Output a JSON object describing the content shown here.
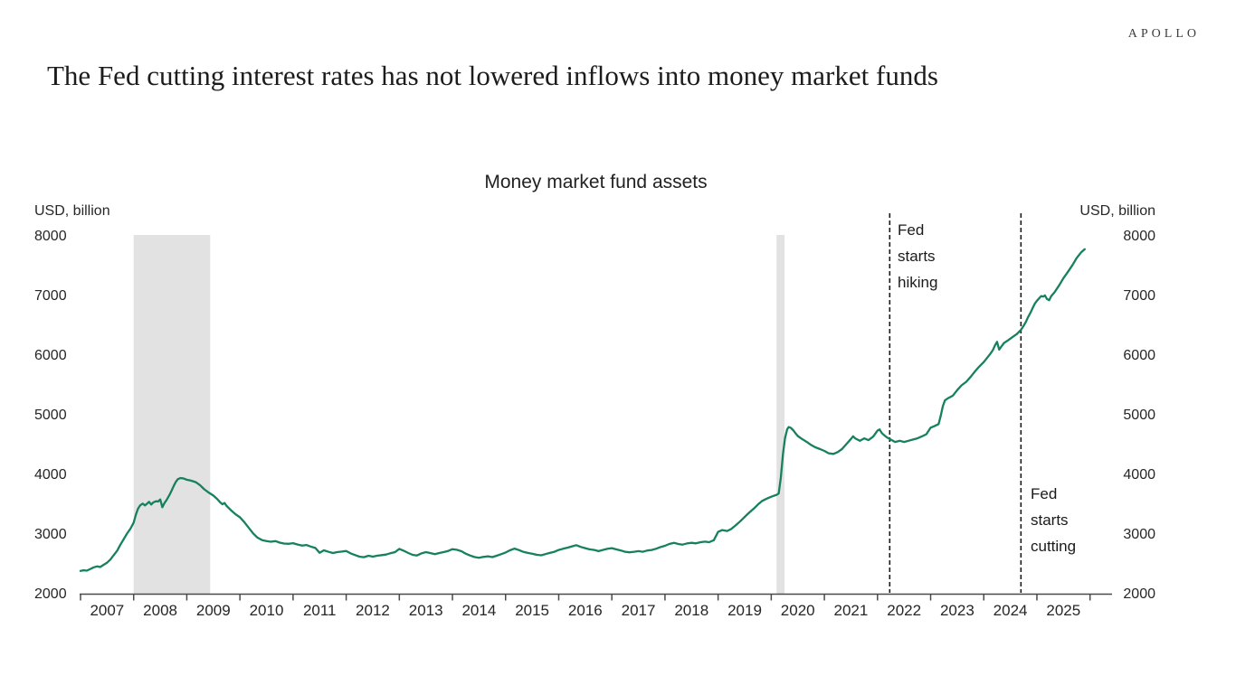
{
  "brand": {
    "logo_text": "APOLLO"
  },
  "page_title": "The Fed cutting interest rates has not lowered inflows into money market funds",
  "chart_data": {
    "type": "line",
    "title": "Money market fund assets",
    "left_axis_label": "USD, billion",
    "right_axis_label": "USD, billion",
    "ylim": [
      2000,
      8000
    ],
    "y_ticks": [
      2000,
      3000,
      4000,
      5000,
      6000,
      7000,
      8000
    ],
    "x_tick_labels": [
      "2007",
      "2008",
      "2009",
      "2010",
      "2011",
      "2012",
      "2013",
      "2014",
      "2015",
      "2016",
      "2017",
      "2018",
      "2019",
      "2020",
      "2021",
      "2022",
      "2023",
      "2024",
      "2025"
    ],
    "grid": false,
    "legend": "none",
    "line_color": "#17805F",
    "recession_band_color": "#E2E2E2",
    "recession_bands": [
      {
        "start": 2008.0,
        "end": 2009.44,
        "name": "2008-2009 recession shading"
      },
      {
        "start": 2020.1,
        "end": 2020.25,
        "name": "2020 recession shading"
      }
    ],
    "events": [
      {
        "year": 2022.23,
        "label": "Fed\nstarts\nhiking"
      },
      {
        "year": 2024.7,
        "label": "Fed\nstarts\ncutting"
      }
    ],
    "series_name": "Money market fund assets (USD, billion)",
    "series": [
      [
        2007.0,
        2390
      ],
      [
        2007.06,
        2400
      ],
      [
        2007.12,
        2395
      ],
      [
        2007.19,
        2425
      ],
      [
        2007.25,
        2450
      ],
      [
        2007.31,
        2465
      ],
      [
        2007.37,
        2455
      ],
      [
        2007.44,
        2495
      ],
      [
        2007.5,
        2530
      ],
      [
        2007.56,
        2580
      ],
      [
        2007.62,
        2650
      ],
      [
        2007.69,
        2730
      ],
      [
        2007.75,
        2830
      ],
      [
        2007.81,
        2920
      ],
      [
        2007.87,
        3010
      ],
      [
        2007.94,
        3100
      ],
      [
        2008.0,
        3200
      ],
      [
        2008.04,
        3330
      ],
      [
        2008.08,
        3430
      ],
      [
        2008.12,
        3490
      ],
      [
        2008.17,
        3520
      ],
      [
        2008.21,
        3490
      ],
      [
        2008.25,
        3515
      ],
      [
        2008.29,
        3550
      ],
      [
        2008.33,
        3505
      ],
      [
        2008.37,
        3540
      ],
      [
        2008.42,
        3560
      ],
      [
        2008.46,
        3555
      ],
      [
        2008.5,
        3590
      ],
      [
        2008.54,
        3460
      ],
      [
        2008.58,
        3530
      ],
      [
        2008.62,
        3580
      ],
      [
        2008.67,
        3660
      ],
      [
        2008.71,
        3730
      ],
      [
        2008.75,
        3810
      ],
      [
        2008.79,
        3880
      ],
      [
        2008.83,
        3930
      ],
      [
        2008.88,
        3950
      ],
      [
        2008.92,
        3945
      ],
      [
        2008.96,
        3935
      ],
      [
        2009.0,
        3920
      ],
      [
        2009.08,
        3905
      ],
      [
        2009.17,
        3880
      ],
      [
        2009.25,
        3830
      ],
      [
        2009.33,
        3760
      ],
      [
        2009.42,
        3700
      ],
      [
        2009.5,
        3655
      ],
      [
        2009.58,
        3590
      ],
      [
        2009.63,
        3540
      ],
      [
        2009.67,
        3510
      ],
      [
        2009.71,
        3530
      ],
      [
        2009.75,
        3480
      ],
      [
        2009.83,
        3410
      ],
      [
        2009.92,
        3340
      ],
      [
        2010.0,
        3290
      ],
      [
        2010.08,
        3210
      ],
      [
        2010.17,
        3110
      ],
      [
        2010.25,
        3020
      ],
      [
        2010.33,
        2950
      ],
      [
        2010.42,
        2905
      ],
      [
        2010.5,
        2890
      ],
      [
        2010.58,
        2880
      ],
      [
        2010.67,
        2890
      ],
      [
        2010.75,
        2865
      ],
      [
        2010.83,
        2850
      ],
      [
        2010.92,
        2845
      ],
      [
        2011.0,
        2855
      ],
      [
        2011.08,
        2835
      ],
      [
        2011.17,
        2815
      ],
      [
        2011.25,
        2825
      ],
      [
        2011.33,
        2800
      ],
      [
        2011.42,
        2775
      ],
      [
        2011.5,
        2695
      ],
      [
        2011.58,
        2735
      ],
      [
        2011.67,
        2710
      ],
      [
        2011.75,
        2690
      ],
      [
        2011.83,
        2705
      ],
      [
        2011.92,
        2715
      ],
      [
        2012.0,
        2725
      ],
      [
        2012.08,
        2685
      ],
      [
        2012.17,
        2655
      ],
      [
        2012.25,
        2630
      ],
      [
        2012.33,
        2620
      ],
      [
        2012.42,
        2645
      ],
      [
        2012.5,
        2630
      ],
      [
        2012.58,
        2645
      ],
      [
        2012.67,
        2655
      ],
      [
        2012.75,
        2665
      ],
      [
        2012.83,
        2685
      ],
      [
        2012.92,
        2705
      ],
      [
        2013.0,
        2760
      ],
      [
        2013.08,
        2730
      ],
      [
        2013.17,
        2690
      ],
      [
        2013.25,
        2660
      ],
      [
        2013.33,
        2650
      ],
      [
        2013.42,
        2685
      ],
      [
        2013.5,
        2705
      ],
      [
        2013.58,
        2690
      ],
      [
        2013.67,
        2672
      ],
      [
        2013.75,
        2690
      ],
      [
        2013.83,
        2705
      ],
      [
        2013.92,
        2725
      ],
      [
        2014.0,
        2755
      ],
      [
        2014.08,
        2745
      ],
      [
        2014.17,
        2720
      ],
      [
        2014.25,
        2680
      ],
      [
        2014.33,
        2650
      ],
      [
        2014.42,
        2622
      ],
      [
        2014.5,
        2612
      ],
      [
        2014.58,
        2625
      ],
      [
        2014.67,
        2635
      ],
      [
        2014.75,
        2622
      ],
      [
        2014.83,
        2645
      ],
      [
        2014.92,
        2672
      ],
      [
        2015.0,
        2700
      ],
      [
        2015.08,
        2735
      ],
      [
        2015.17,
        2765
      ],
      [
        2015.25,
        2740
      ],
      [
        2015.33,
        2712
      ],
      [
        2015.42,
        2692
      ],
      [
        2015.5,
        2680
      ],
      [
        2015.58,
        2662
      ],
      [
        2015.67,
        2652
      ],
      [
        2015.75,
        2672
      ],
      [
        2015.83,
        2692
      ],
      [
        2015.92,
        2712
      ],
      [
        2016.0,
        2742
      ],
      [
        2016.08,
        2762
      ],
      [
        2016.17,
        2782
      ],
      [
        2016.25,
        2802
      ],
      [
        2016.33,
        2822
      ],
      [
        2016.42,
        2792
      ],
      [
        2016.5,
        2772
      ],
      [
        2016.58,
        2752
      ],
      [
        2016.67,
        2742
      ],
      [
        2016.75,
        2722
      ],
      [
        2016.83,
        2742
      ],
      [
        2016.92,
        2762
      ],
      [
        2017.0,
        2772
      ],
      [
        2017.08,
        2752
      ],
      [
        2017.17,
        2732
      ],
      [
        2017.25,
        2712
      ],
      [
        2017.33,
        2702
      ],
      [
        2017.42,
        2712
      ],
      [
        2017.5,
        2722
      ],
      [
        2017.58,
        2712
      ],
      [
        2017.67,
        2732
      ],
      [
        2017.75,
        2742
      ],
      [
        2017.83,
        2762
      ],
      [
        2017.92,
        2792
      ],
      [
        2018.0,
        2812
      ],
      [
        2018.08,
        2842
      ],
      [
        2018.17,
        2862
      ],
      [
        2018.25,
        2842
      ],
      [
        2018.33,
        2832
      ],
      [
        2018.42,
        2852
      ],
      [
        2018.5,
        2862
      ],
      [
        2018.58,
        2852
      ],
      [
        2018.67,
        2872
      ],
      [
        2018.75,
        2882
      ],
      [
        2018.83,
        2872
      ],
      [
        2018.92,
        2905
      ],
      [
        2019.0,
        3045
      ],
      [
        2019.08,
        3075
      ],
      [
        2019.17,
        3060
      ],
      [
        2019.25,
        3095
      ],
      [
        2019.33,
        3155
      ],
      [
        2019.42,
        3225
      ],
      [
        2019.5,
        3295
      ],
      [
        2019.58,
        3365
      ],
      [
        2019.67,
        3435
      ],
      [
        2019.75,
        3505
      ],
      [
        2019.83,
        3565
      ],
      [
        2019.92,
        3605
      ],
      [
        2020.0,
        3635
      ],
      [
        2020.06,
        3655
      ],
      [
        2020.1,
        3665
      ],
      [
        2020.14,
        3690
      ],
      [
        2020.18,
        3950
      ],
      [
        2020.22,
        4350
      ],
      [
        2020.26,
        4620
      ],
      [
        2020.3,
        4770
      ],
      [
        2020.33,
        4805
      ],
      [
        2020.37,
        4790
      ],
      [
        2020.42,
        4745
      ],
      [
        2020.46,
        4695
      ],
      [
        2020.5,
        4655
      ],
      [
        2020.58,
        4605
      ],
      [
        2020.67,
        4555
      ],
      [
        2020.75,
        4505
      ],
      [
        2020.83,
        4465
      ],
      [
        2020.92,
        4435
      ],
      [
        2021.0,
        4405
      ],
      [
        2021.08,
        4365
      ],
      [
        2021.17,
        4355
      ],
      [
        2021.25,
        4385
      ],
      [
        2021.33,
        4435
      ],
      [
        2021.42,
        4525
      ],
      [
        2021.5,
        4605
      ],
      [
        2021.54,
        4650
      ],
      [
        2021.58,
        4615
      ],
      [
        2021.67,
        4575
      ],
      [
        2021.75,
        4615
      ],
      [
        2021.83,
        4585
      ],
      [
        2021.92,
        4645
      ],
      [
        2022.0,
        4745
      ],
      [
        2022.04,
        4765
      ],
      [
        2022.08,
        4705
      ],
      [
        2022.13,
        4665
      ],
      [
        2022.17,
        4635
      ],
      [
        2022.23,
        4605
      ],
      [
        2022.29,
        4575
      ],
      [
        2022.33,
        4555
      ],
      [
        2022.42,
        4575
      ],
      [
        2022.5,
        4555
      ],
      [
        2022.58,
        4575
      ],
      [
        2022.67,
        4595
      ],
      [
        2022.75,
        4615
      ],
      [
        2022.83,
        4645
      ],
      [
        2022.92,
        4685
      ],
      [
        2023.0,
        4795
      ],
      [
        2023.08,
        4825
      ],
      [
        2023.15,
        4855
      ],
      [
        2023.19,
        4995
      ],
      [
        2023.23,
        5155
      ],
      [
        2023.27,
        5255
      ],
      [
        2023.33,
        5290
      ],
      [
        2023.42,
        5335
      ],
      [
        2023.5,
        5425
      ],
      [
        2023.58,
        5505
      ],
      [
        2023.67,
        5565
      ],
      [
        2023.75,
        5645
      ],
      [
        2023.83,
        5735
      ],
      [
        2023.92,
        5825
      ],
      [
        2024.0,
        5895
      ],
      [
        2024.08,
        5985
      ],
      [
        2024.13,
        6045
      ],
      [
        2024.17,
        6095
      ],
      [
        2024.21,
        6175
      ],
      [
        2024.25,
        6235
      ],
      [
        2024.29,
        6105
      ],
      [
        2024.33,
        6155
      ],
      [
        2024.38,
        6215
      ],
      [
        2024.46,
        6265
      ],
      [
        2024.54,
        6315
      ],
      [
        2024.62,
        6365
      ],
      [
        2024.7,
        6435
      ],
      [
        2024.75,
        6505
      ],
      [
        2024.79,
        6565
      ],
      [
        2024.83,
        6645
      ],
      [
        2024.88,
        6725
      ],
      [
        2024.92,
        6805
      ],
      [
        2024.96,
        6875
      ],
      [
        2025.0,
        6925
      ],
      [
        2025.04,
        6965
      ],
      [
        2025.08,
        7005
      ],
      [
        2025.12,
        6995
      ],
      [
        2025.15,
        7015
      ],
      [
        2025.19,
        6955
      ],
      [
        2025.23,
        6935
      ],
      [
        2025.27,
        7005
      ],
      [
        2025.33,
        7065
      ],
      [
        2025.42,
        7185
      ],
      [
        2025.5,
        7305
      ],
      [
        2025.58,
        7405
      ],
      [
        2025.67,
        7525
      ],
      [
        2025.75,
        7645
      ],
      [
        2025.83,
        7735
      ],
      [
        2025.9,
        7790
      ]
    ]
  }
}
